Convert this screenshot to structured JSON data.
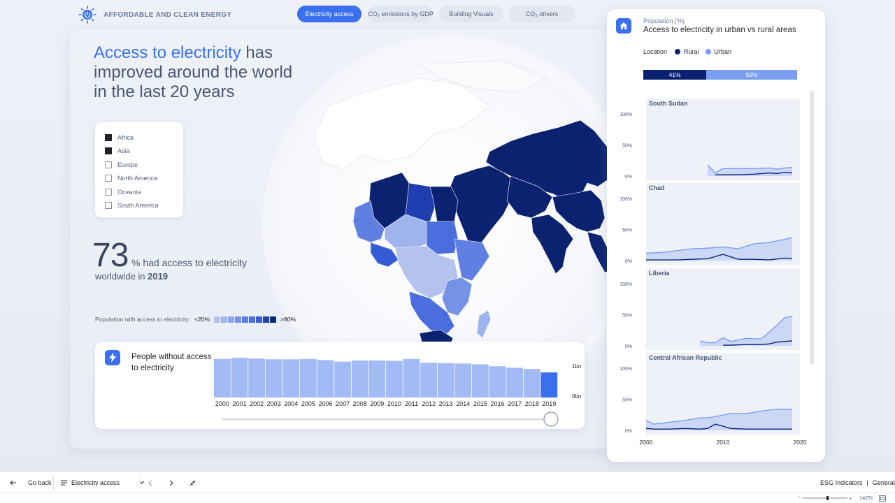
{
  "header": {
    "brand_title": "AFFORDABLE AND CLEAN ENERGY",
    "tabs": [
      {
        "label": "Electricity access",
        "active": true
      },
      {
        "label": "CO₂ emissions by GDP",
        "active": false
      },
      {
        "label": "Building Visuals",
        "active": false
      },
      {
        "label": "CO₂ drivers",
        "active": false
      }
    ]
  },
  "main": {
    "headline_accent": "Access to electricity",
    "headline_rest": " has improved around the world in the last 20 years",
    "legend": [
      {
        "label": "Africa",
        "checked": true
      },
      {
        "label": "Asia",
        "checked": true
      },
      {
        "label": "Europe",
        "checked": false
      },
      {
        "label": "North America",
        "checked": false
      },
      {
        "label": "Oceania",
        "checked": false
      },
      {
        "label": "South America",
        "checked": false
      }
    ],
    "stat_value": "73",
    "stat_text": "% had access to electricity",
    "stat_sub_prefix": "worldwide in ",
    "stat_year": "2019",
    "scale_label": "Population with access to electricity:",
    "scale_low": "<20%",
    "scale_high": ">80%",
    "scale_colors": [
      "#b3c3ee",
      "#9fb4ec",
      "#8aa3ea",
      "#7592e6",
      "#5f80e2",
      "#4a6ede",
      "#355bd6",
      "#1f3fb0",
      "#0b2a7a"
    ]
  },
  "people": {
    "title": "People without access to electricity",
    "y_labels": [
      "1bn",
      "0bn"
    ],
    "bar_color": "#a2bbf4",
    "highlight_color": "#3a70ee"
  },
  "chart_data": [
    {
      "type": "bar",
      "title": "People without access to electricity",
      "categories": [
        "2000",
        "2001",
        "2002",
        "2003",
        "2004",
        "2005",
        "2006",
        "2007",
        "2008",
        "2009",
        "2010",
        "2011",
        "2012",
        "2013",
        "2014",
        "2015",
        "2016",
        "2017",
        "2018",
        "2019"
      ],
      "values": [
        1.0,
        1.03,
        1.01,
        0.99,
        0.99,
        1.0,
        0.97,
        0.93,
        0.96,
        0.96,
        0.95,
        1.0,
        0.9,
        0.89,
        0.88,
        0.86,
        0.81,
        0.77,
        0.74,
        0.65
      ],
      "ylim": [
        0,
        1.2
      ],
      "highlight": "2019"
    },
    {
      "type": "area",
      "title": "South Sudan",
      "x": [
        2008,
        2009,
        2010,
        2012,
        2014,
        2016,
        2017,
        2018,
        2019
      ],
      "series": [
        {
          "name": "Urban",
          "values": [
            18,
            5,
            12,
            12,
            12,
            13,
            11,
            13,
            14
          ]
        },
        {
          "name": "Rural",
          "values": [
            null,
            2,
            2,
            2,
            3,
            5,
            4,
            6,
            5
          ]
        }
      ],
      "ylim": [
        0,
        100
      ]
    },
    {
      "type": "area",
      "title": "Chad",
      "x": [
        2000,
        2002,
        2004,
        2006,
        2008,
        2010,
        2012,
        2014,
        2016,
        2018,
        2019
      ],
      "series": [
        {
          "name": "Urban",
          "values": [
            12,
            13,
            16,
            19,
            20,
            22,
            19,
            27,
            29,
            34,
            37
          ]
        },
        {
          "name": "Rural",
          "values": [
            1,
            1,
            1,
            2,
            3,
            10,
            2,
            2,
            1,
            4,
            3
          ]
        }
      ],
      "ylim": [
        0,
        100
      ]
    },
    {
      "type": "area",
      "title": "Liberia",
      "x": [
        2007,
        2008,
        2009,
        2010,
        2011,
        2013,
        2015,
        2016,
        2017,
        2018,
        2019
      ],
      "series": [
        {
          "name": "Urban",
          "values": [
            8,
            5,
            5,
            13,
            7,
            12,
            11,
            22,
            33,
            45,
            48
          ]
        },
        {
          "name": "Rural",
          "values": [
            null,
            null,
            null,
            1,
            1,
            2,
            2,
            3,
            6,
            7,
            8
          ]
        }
      ],
      "ylim": [
        0,
        100
      ]
    },
    {
      "type": "area",
      "title": "Central African Republic",
      "x": [
        2000,
        2001,
        2003,
        2005,
        2007,
        2008,
        2009,
        2011,
        2013,
        2015,
        2017,
        2019
      ],
      "series": [
        {
          "name": "Urban",
          "values": [
            16,
            10,
            13,
            16,
            20,
            20,
            22,
            27,
            27,
            31,
            34,
            34
          ]
        },
        {
          "name": "Rural",
          "values": [
            3,
            2,
            2,
            3,
            2,
            3,
            10,
            3,
            2,
            2,
            2,
            2
          ]
        }
      ],
      "ylim": [
        0,
        100
      ]
    }
  ],
  "right_panel": {
    "subtitle": "Population (%)",
    "title": "Access to electricity in urban vs rural areas",
    "location_label": "Location",
    "rural_label": "Rural",
    "urban_label": "Urban",
    "rural_color": "#0b2270",
    "urban_color": "#7b9ef0",
    "rural_pct": 41,
    "urban_pct": 59,
    "rural_pct_label": "41%",
    "urban_pct_label": "59%",
    "y_ticks": [
      "100%",
      "50%",
      "0%"
    ],
    "x_ticks": [
      "2000",
      "2010",
      "2020"
    ]
  },
  "bottom_bar": {
    "back_label": "Go back",
    "page_label": "Electricity access",
    "workspace": "ESG Indicators",
    "sensitivity": "General",
    "zoom": "142%"
  }
}
